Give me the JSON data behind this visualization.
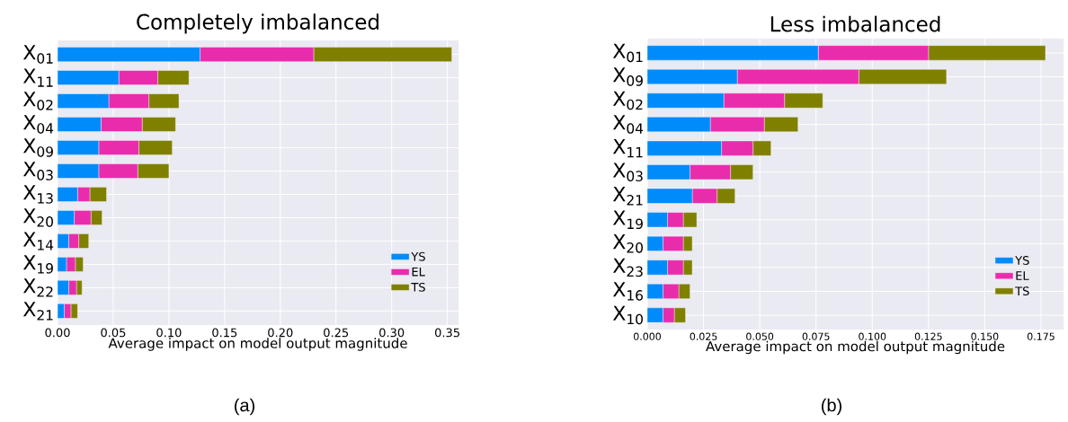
{
  "chart_data": [
    {
      "type": "bar",
      "orientation": "horizontal",
      "stacked": true,
      "title": "Completely imbalanced",
      "xlabel": "Average impact on model output magnitude",
      "categories": [
        "X$_{01}$",
        "X$_{11}$",
        "X$_{02}$",
        "X$_{04}$",
        "X$_{09}$",
        "X$_{03}$",
        "X$_{13}$",
        "X$_{20}$",
        "X$_{14}$",
        "X$_{19}$",
        "X$_{22}$",
        "X$_{21}$"
      ],
      "series": [
        {
          "name": "YS",
          "color": "#008bfb",
          "values": [
            0.128,
            0.055,
            0.046,
            0.039,
            0.037,
            0.037,
            0.018,
            0.015,
            0.01,
            0.008,
            0.01,
            0.006
          ]
        },
        {
          "name": "EL",
          "color": "#e92cac",
          "values": [
            0.102,
            0.035,
            0.036,
            0.037,
            0.036,
            0.035,
            0.011,
            0.015,
            0.009,
            0.008,
            0.007,
            0.006
          ]
        },
        {
          "name": "TS",
          "color": "#808000",
          "values": [
            0.124,
            0.028,
            0.027,
            0.03,
            0.03,
            0.028,
            0.015,
            0.01,
            0.009,
            0.007,
            0.005,
            0.006
          ]
        }
      ],
      "xlim": [
        0,
        0.36
      ],
      "xticks": [
        {
          "value": 0,
          "label": "0.00"
        },
        {
          "value": 0.05,
          "label": "0.05"
        },
        {
          "value": 0.1,
          "label": "0.10"
        },
        {
          "value": 0.15,
          "label": "0.15"
        },
        {
          "value": 0.2,
          "label": "0.20"
        },
        {
          "value": 0.25,
          "label": "0.25"
        },
        {
          "value": 0.3,
          "label": "0.30"
        },
        {
          "value": 0.35,
          "label": "0.35"
        }
      ],
      "grid": true,
      "legend": "bottom right",
      "annotations": [
        "(a)"
      ]
    },
    {
      "type": "bar",
      "orientation": "horizontal",
      "stacked": true,
      "title": "Less imbalanced",
      "xlabel": "Average impact on model output magnitude",
      "categories": [
        "X$_{01}$",
        "X$_{09}$",
        "X$_{02}$",
        "X$_{04}$",
        "X$_{11}$",
        "X$_{03}$",
        "X$_{21}$",
        "X$_{19}$",
        "X$_{20}$",
        "X$_{23}$",
        "X$_{16}$",
        "X$_{10}$"
      ],
      "series": [
        {
          "name": "YS",
          "color": "#008bfb",
          "values": [
            0.076,
            0.04,
            0.034,
            0.028,
            0.033,
            0.019,
            0.02,
            0.009,
            0.007,
            0.009,
            0.007,
            0.007
          ]
        },
        {
          "name": "EL",
          "color": "#e92cac",
          "values": [
            0.049,
            0.054,
            0.027,
            0.024,
            0.014,
            0.018,
            0.011,
            0.007,
            0.009,
            0.007,
            0.007,
            0.005
          ]
        },
        {
          "name": "TS",
          "color": "#808000",
          "values": [
            0.052,
            0.039,
            0.017,
            0.015,
            0.008,
            0.01,
            0.008,
            0.006,
            0.004,
            0.004,
            0.005,
            0.005
          ]
        }
      ],
      "xlim": [
        0,
        0.185
      ],
      "xticks": [
        {
          "value": 0,
          "label": "0.000"
        },
        {
          "value": 0.025,
          "label": "0.025"
        },
        {
          "value": 0.05,
          "label": "0.050"
        },
        {
          "value": 0.075,
          "label": "0.075"
        },
        {
          "value": 0.1,
          "label": "0.100"
        },
        {
          "value": 0.125,
          "label": "0.125"
        },
        {
          "value": 0.15,
          "label": "0.150"
        },
        {
          "value": 0.175,
          "label": "0.175"
        }
      ],
      "grid": true,
      "legend": "bottom right",
      "annotations": [
        "(b)"
      ]
    }
  ]
}
